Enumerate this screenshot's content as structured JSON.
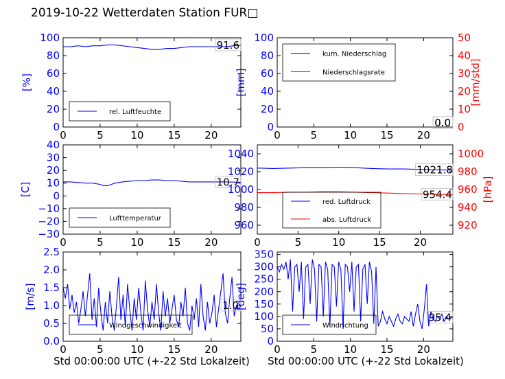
{
  "title": "2019-10-22 Wetterdaten Station FUR",
  "title_glyph": "□",
  "colors": {
    "primary": "#0000ff",
    "secondary": "#ff0000",
    "axis": "#000000"
  },
  "xlabel": "Std 00:00:00 UTC (+-22 Std Lokalzeit)",
  "chart_data": [
    {
      "type": "line",
      "id": "humidity",
      "ylabel": "[%]",
      "ylim": [
        0,
        100
      ],
      "yticks": [
        0,
        20,
        40,
        60,
        80,
        100
      ],
      "xlim": [
        0,
        24
      ],
      "xticks": [
        0,
        5,
        10,
        15,
        20
      ],
      "legend": "bottom-left",
      "series": [
        {
          "name": "rel. Luftfeuchte",
          "axis": "left",
          "color": "#0000ff",
          "x": [
            0,
            1,
            2,
            3,
            4,
            5,
            6,
            7,
            8,
            9,
            10,
            11,
            12,
            13,
            14,
            15,
            16,
            17,
            18,
            19,
            20,
            21,
            22,
            23,
            24
          ],
          "y": [
            90,
            90,
            91,
            90,
            91,
            91,
            92,
            92,
            91,
            90,
            89,
            88,
            87,
            87,
            88,
            88,
            89,
            90,
            90,
            90,
            90,
            90,
            90,
            91,
            91.6
          ]
        }
      ],
      "annotations": [
        {
          "text": "91.6",
          "x": 24,
          "y": 91.6,
          "axis": "left"
        }
      ]
    },
    {
      "type": "line",
      "id": "precipitation",
      "ylabel": "[mm]",
      "ylim": [
        0,
        100
      ],
      "yticks": [
        0,
        20,
        40,
        60,
        80,
        100
      ],
      "y2label": "[mm/std]",
      "y2lim": [
        0,
        50
      ],
      "y2ticks": [
        0,
        10,
        20,
        30,
        40,
        50
      ],
      "xlim": [
        0,
        24
      ],
      "xticks": [
        0,
        5,
        10,
        15,
        20
      ],
      "legend": "top-left",
      "series": [
        {
          "name": "kum. Niederschlag",
          "axis": "left",
          "color": "#0000ff",
          "x": [
            0,
            24
          ],
          "y": [
            0,
            0
          ]
        },
        {
          "name": "Niederschlagsrate",
          "axis": "right",
          "color": "#ff0000",
          "x": [
            0,
            24
          ],
          "y": [
            0,
            0
          ]
        }
      ],
      "annotations": [
        {
          "text": "0.0",
          "x": 24,
          "y": 0,
          "axis": "left"
        },
        {
          "text": "0.0",
          "x": 24,
          "y": 0,
          "axis": "right"
        }
      ]
    },
    {
      "type": "line",
      "id": "temperature",
      "ylabel": "[C]",
      "ylim": [
        -30,
        40
      ],
      "yticks": [
        -30,
        -20,
        -10,
        0,
        10,
        20,
        30,
        40
      ],
      "xlim": [
        0,
        24
      ],
      "xticks": [
        0,
        5,
        10,
        15,
        20
      ],
      "legend": "bottom-left",
      "series": [
        {
          "name": "Lufttemperatur",
          "axis": "left",
          "color": "#0000ff",
          "x": [
            0,
            1,
            2,
            3,
            4,
            5,
            5.5,
            6,
            6.5,
            7,
            8,
            9,
            10,
            11,
            12,
            13,
            14,
            15,
            16,
            17,
            18,
            19,
            20,
            21,
            22,
            23,
            24
          ],
          "y": [
            11,
            11,
            10.5,
            10,
            10,
            9,
            8,
            8,
            9,
            10,
            11,
            11.5,
            12,
            12,
            12.5,
            12.5,
            12,
            12,
            11.5,
            11,
            11,
            11,
            11,
            11,
            11,
            10.8,
            10.7
          ]
        }
      ],
      "annotations": [
        {
          "text": "10.7",
          "x": 24,
          "y": 10.7,
          "axis": "left"
        }
      ]
    },
    {
      "type": "line",
      "id": "pressure",
      "ylabel": "",
      "ylim": [
        950,
        1050
      ],
      "yticks": [
        960,
        980,
        1000,
        1020,
        1040
      ],
      "y2label": "[hPa]",
      "y2lim": [
        910,
        1010
      ],
      "y2ticks": [
        920,
        940,
        960,
        980,
        1000
      ],
      "xlim": [
        0,
        24
      ],
      "xticks": [
        0,
        5,
        10,
        15,
        20
      ],
      "legend": "bottom-left",
      "series": [
        {
          "name": "red. Luftdruck",
          "axis": "left",
          "color": "#0000ff",
          "x": [
            0,
            2,
            4,
            6,
            8,
            10,
            12,
            14,
            16,
            18,
            20,
            22,
            24
          ],
          "y": [
            1024,
            1023.5,
            1024,
            1024.5,
            1024.5,
            1025,
            1024.5,
            1023.5,
            1023,
            1023,
            1022.5,
            1022,
            1021.8
          ]
        },
        {
          "name": "abs. Luftdruck",
          "axis": "right",
          "color": "#ff0000",
          "x": [
            0,
            2,
            4,
            6,
            8,
            10,
            12,
            14,
            16,
            18,
            20,
            22,
            24
          ],
          "y": [
            956.5,
            956.5,
            957,
            957,
            957.5,
            957.5,
            957,
            956.5,
            956,
            955.5,
            955,
            954.7,
            954.4
          ]
        }
      ],
      "annotations": [
        {
          "text": "1021.8",
          "x": 24,
          "y": 1021.8,
          "axis": "left"
        },
        {
          "text": "954.4",
          "x": 24,
          "y": 954.4,
          "axis": "right"
        }
      ]
    },
    {
      "type": "line",
      "id": "windspeed",
      "ylabel": "[m/s]",
      "ylim": [
        0,
        2.5
      ],
      "yticks": [
        0.0,
        0.5,
        1.0,
        1.5,
        2.0,
        2.5
      ],
      "xlim": [
        0,
        24
      ],
      "xticks": [
        0,
        5,
        10,
        15,
        20
      ],
      "legend": "bottom-left",
      "series": [
        {
          "name": "Windgeschwindigkeit",
          "axis": "left",
          "color": "#0000ff",
          "x": [
            0,
            0.3,
            0.6,
            0.9,
            1.2,
            1.5,
            1.8,
            2.1,
            2.4,
            2.7,
            3.0,
            3.3,
            3.6,
            3.9,
            4.2,
            4.5,
            4.8,
            5.1,
            5.4,
            5.7,
            6.0,
            6.3,
            6.6,
            6.9,
            7.2,
            7.5,
            7.8,
            8.1,
            8.4,
            8.7,
            9.0,
            9.3,
            9.6,
            9.9,
            10.2,
            10.5,
            10.8,
            11.1,
            11.4,
            11.7,
            12.0,
            12.3,
            12.6,
            12.9,
            13.2,
            13.5,
            13.8,
            14.1,
            14.4,
            14.7,
            15.0,
            15.3,
            15.6,
            15.9,
            16.2,
            16.5,
            16.8,
            17.1,
            17.4,
            17.7,
            18.0,
            18.3,
            18.6,
            18.9,
            19.2,
            19.5,
            19.8,
            20.1,
            20.4,
            20.7,
            21.0,
            21.3,
            21.6,
            21.9,
            22.2,
            22.5,
            22.8,
            23.1,
            23.4,
            23.7,
            24.0
          ],
          "y": [
            1.5,
            1.2,
            1.6,
            0.9,
            1.3,
            0.8,
            1.1,
            0.5,
            0.9,
            1.4,
            0.7,
            1.3,
            1.9,
            0.6,
            1.2,
            0.4,
            1.5,
            0.8,
            0.3,
            1.1,
            0.5,
            1.4,
            0.7,
            0.3,
            1.0,
            1.8,
            0.6,
            1.3,
            0.4,
            1.6,
            0.9,
            0.3,
            1.2,
            0.6,
            1.5,
            0.8,
            0.3,
            1.7,
            0.9,
            0.4,
            1.1,
            0.6,
            1.6,
            0.8,
            0.3,
            1.4,
            0.7,
            1.2,
            0.5,
            0.9,
            1.3,
            0.6,
            0.4,
            1.1,
            0.7,
            1.5,
            0.5,
            0.3,
            1.0,
            0.6,
            1.2,
            0.4,
            1.6,
            0.7,
            0.3,
            1.1,
            0.5,
            0.8,
            1.3,
            0.4,
            0.9,
            1.4,
            1.9,
            0.8,
            0.5,
            1.2,
            1.8,
            0.7,
            1.0,
            0.9,
            1.0
          ]
        }
      ],
      "annotations": [
        {
          "text": "1.0",
          "x": 24,
          "y": 1.0,
          "axis": "left"
        }
      ]
    },
    {
      "type": "line",
      "id": "winddirection",
      "ylabel": "[deg]",
      "ylim": [
        0,
        360
      ],
      "yticks": [
        0,
        50,
        100,
        150,
        200,
        250,
        300,
        350
      ],
      "xlim": [
        0,
        24
      ],
      "xticks": [
        0,
        5,
        10,
        15,
        20
      ],
      "legend": "bottom-left",
      "series": [
        {
          "name": "Windrichtung",
          "axis": "left",
          "color": "#0000ff",
          "x": [
            0,
            0.3,
            0.6,
            0.9,
            1.2,
            1.5,
            1.8,
            2.1,
            2.4,
            2.7,
            3.0,
            3.3,
            3.6,
            3.9,
            4.2,
            4.5,
            4.8,
            5.1,
            5.4,
            5.7,
            6.0,
            6.3,
            6.6,
            6.9,
            7.2,
            7.5,
            7.8,
            8.1,
            8.4,
            8.7,
            9.0,
            9.3,
            9.6,
            9.9,
            10.2,
            10.5,
            10.8,
            11.1,
            11.4,
            11.7,
            12.0,
            12.3,
            12.6,
            12.9,
            13.2,
            13.5,
            13.8,
            14.1,
            14.4,
            14.7,
            15.0,
            15.3,
            15.6,
            15.9,
            16.2,
            16.5,
            16.8,
            17.1,
            17.4,
            17.7,
            18.0,
            18.3,
            18.6,
            18.9,
            19.2,
            19.5,
            19.8,
            20.1,
            20.4,
            20.7,
            21.0,
            21.3,
            21.6,
            21.9,
            22.2,
            22.5,
            22.8,
            23.1,
            23.4,
            23.7,
            24.0
          ],
          "y": [
            300,
            280,
            310,
            290,
            320,
            250,
            330,
            120,
            300,
            310,
            200,
            320,
            90,
            300,
            310,
            150,
            330,
            290,
            80,
            310,
            300,
            100,
            320,
            290,
            60,
            310,
            300,
            140,
            320,
            290,
            50,
            310,
            300,
            200,
            320,
            120,
            300,
            310,
            80,
            290,
            310,
            150,
            320,
            280,
            70,
            300,
            60,
            80,
            120,
            90,
            70,
            100,
            80,
            60,
            90,
            110,
            80,
            70,
            100,
            90,
            80,
            120,
            60,
            110,
            150,
            80,
            50,
            130,
            230,
            60,
            120,
            90,
            80,
            100,
            90,
            110,
            80,
            100,
            90,
            95,
            95.4
          ]
        }
      ],
      "annotations": [
        {
          "text": "95.4",
          "x": 24,
          "y": 95.4,
          "axis": "left"
        }
      ]
    }
  ]
}
